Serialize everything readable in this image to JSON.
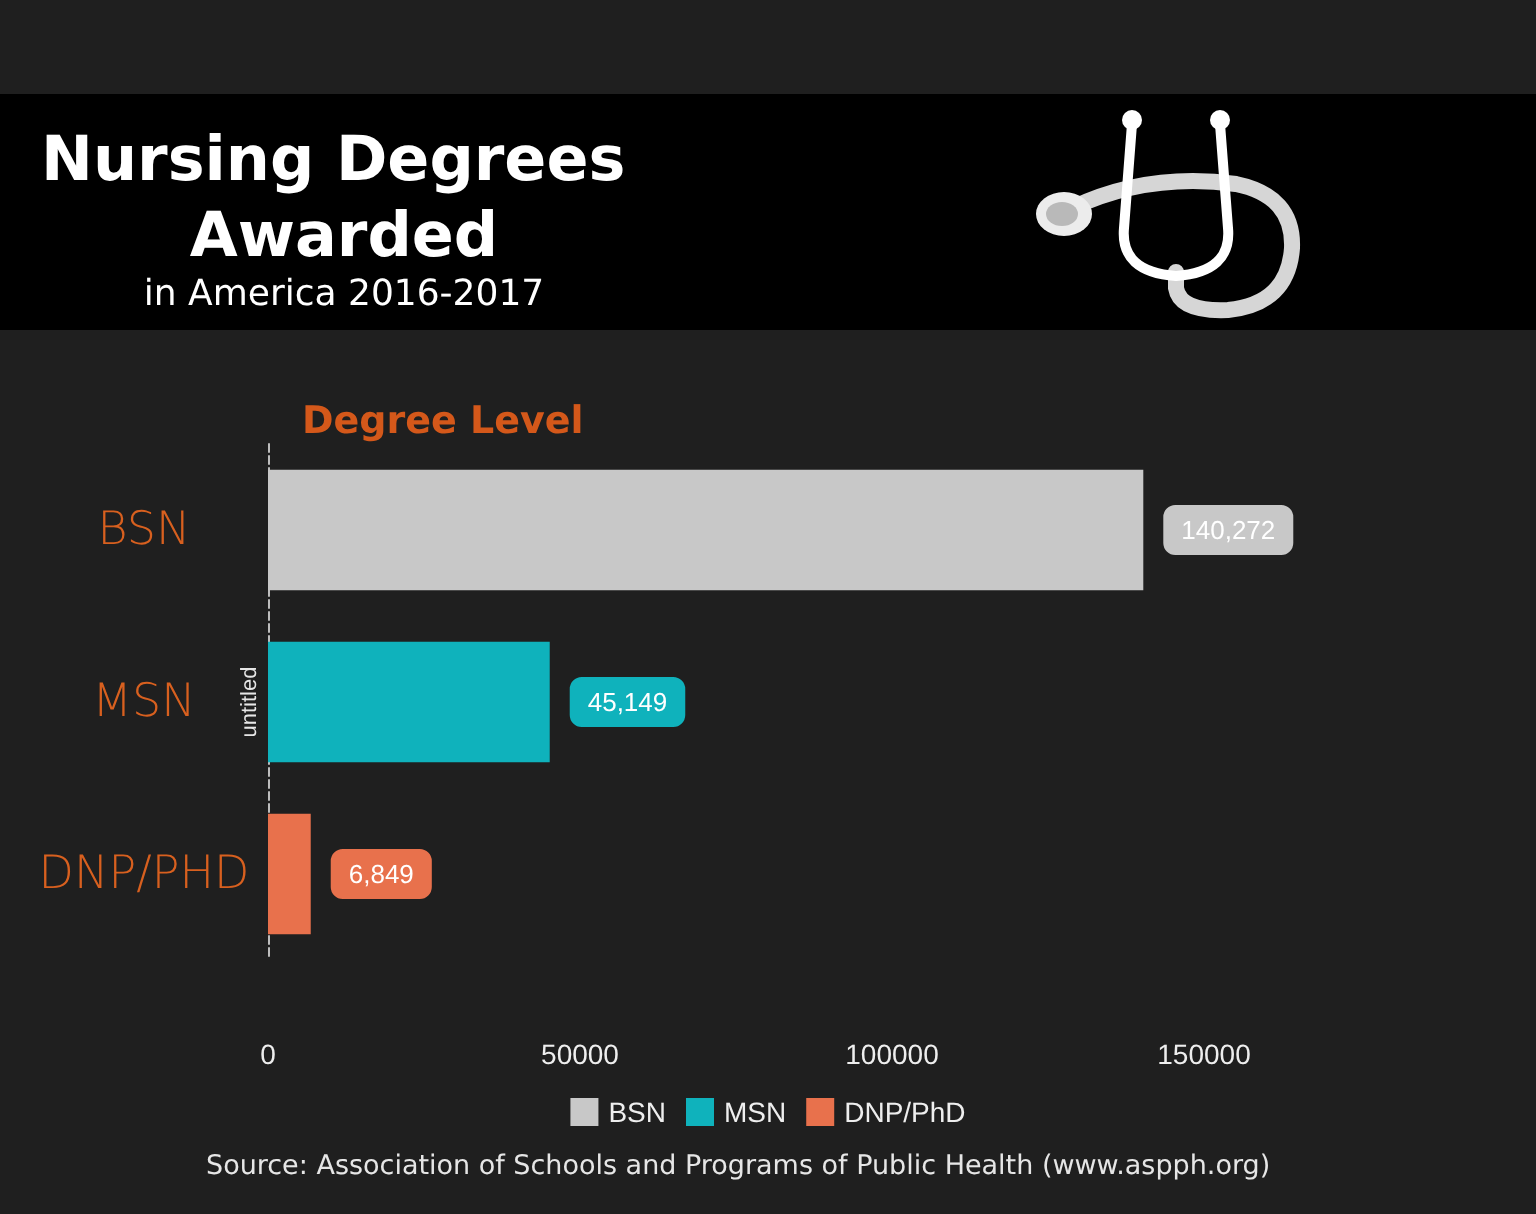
{
  "chart_data": {
    "type": "bar",
    "title": "Nursing Degrees Awarded",
    "subtitle": "in America 2016-2017",
    "ylabel": "untitled",
    "annotations": [
      "Degree Level",
      "Source: Association of Schools and Programs of Public Health (www.aspph.org)"
    ],
    "orientation": "horizontal",
    "stacked": true,
    "categories": [
      "BSN",
      "MSN",
      "DNP/PHD"
    ],
    "series": [
      {
        "name": "BSN",
        "color": "#c8c8c8",
        "values": [
          140272,
          null,
          null
        ],
        "value_labels": [
          "140,272",
          null,
          null
        ]
      },
      {
        "name": "MSN",
        "color": "#0fb2bc",
        "values": [
          null,
          45149,
          null
        ],
        "value_labels": [
          null,
          "45,149",
          null
        ]
      },
      {
        "name": "DNP/PhD",
        "color": "#e8714c",
        "values": [
          null,
          null,
          6849
        ],
        "value_labels": [
          null,
          null,
          "6,849"
        ]
      }
    ],
    "xlim": [
      0,
      150000
    ],
    "xticks": [
      0,
      50000,
      100000,
      150000
    ],
    "legend": "bottom"
  }
}
